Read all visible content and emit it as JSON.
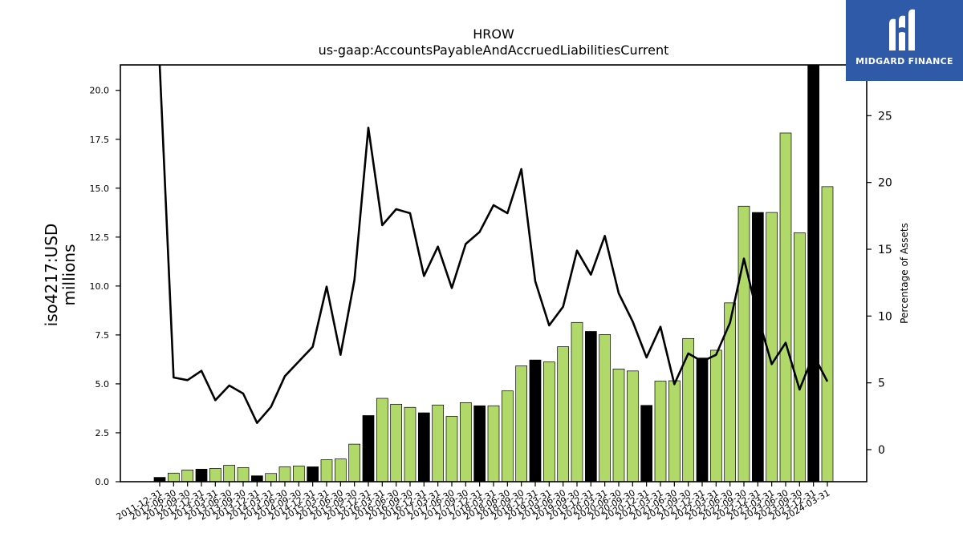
{
  "colors": {
    "bar_fill": "#b0d96a",
    "bar_highlight": "#000000",
    "line": "#000000",
    "logo_bg": "#2f5aa8"
  },
  "logo": {
    "text": "MIDGARD FINANCE"
  },
  "chart_data": {
    "type": "bar",
    "title": "HROW",
    "subtitle": "us-gaap:AccountsPayableAndAccruedLiabilitiesCurrent",
    "ylabel": "iso4217:USD\nmillions",
    "ylabel_right": "Percentage of Assets",
    "ylim": [
      0,
      21.3
    ],
    "ylim_right": [
      -2.4,
      28.8
    ],
    "yticks": [
      "0.0",
      "2.5",
      "5.0",
      "7.5",
      "10.0",
      "12.5",
      "15.0",
      "17.5",
      "20.0"
    ],
    "yticks_right": [
      "0",
      "5",
      "10",
      "15",
      "20",
      "25"
    ],
    "grid": false,
    "x": [
      "2011-12-31",
      "2012-06-30",
      "2012-09-30",
      "2012-12-31",
      "2013-03-31",
      "2013-06-30",
      "2013-09-30",
      "2013-12-31",
      "2014-03-31",
      "2014-06-30",
      "2014-09-30",
      "2014-12-31",
      "2015-03-31",
      "2015-06-30",
      "2015-09-30",
      "2015-12-31",
      "2016-03-31",
      "2016-06-30",
      "2016-09-30",
      "2016-12-31",
      "2017-03-31",
      "2017-06-30",
      "2017-09-30",
      "2017-12-31",
      "2018-03-31",
      "2018-06-30",
      "2018-09-30",
      "2018-12-31",
      "2019-03-31",
      "2019-06-30",
      "2019-09-30",
      "2019-12-31",
      "2020-03-31",
      "2020-06-30",
      "2020-09-30",
      "2020-12-31",
      "2021-03-31",
      "2021-06-30",
      "2021-09-30",
      "2021-12-31",
      "2022-03-31",
      "2022-06-30",
      "2022-09-30",
      "2022-12-31",
      "2023-03-31",
      "2023-06-30",
      "2023-09-30",
      "2023-12-31",
      "2024-03-31"
    ],
    "series": [
      {
        "name": "Value",
        "values": [
          0.22,
          0.44,
          0.6,
          0.64,
          0.68,
          0.84,
          0.72,
          0.3,
          0.42,
          0.76,
          0.8,
          0.76,
          1.12,
          1.16,
          1.92,
          3.38,
          4.26,
          3.96,
          3.8,
          3.52,
          3.92,
          3.34,
          4.04,
          3.88,
          3.88,
          4.64,
          5.92,
          6.22,
          6.12,
          6.9,
          8.14,
          7.68,
          7.52,
          5.76,
          5.66,
          3.9,
          5.14,
          5.16,
          7.32,
          6.32,
          6.72,
          9.14,
          14.08,
          13.76,
          13.76,
          17.82,
          12.72,
          21.4,
          15.08
        ],
        "highlight": [
          true,
          false,
          false,
          true,
          false,
          false,
          false,
          true,
          false,
          false,
          false,
          true,
          false,
          false,
          false,
          true,
          false,
          false,
          false,
          true,
          false,
          false,
          false,
          true,
          false,
          false,
          false,
          true,
          false,
          false,
          false,
          true,
          false,
          false,
          false,
          true,
          false,
          false,
          false,
          true,
          false,
          false,
          false,
          true,
          false,
          false,
          false,
          true,
          false
        ]
      },
      {
        "name": "Percentage of Assets",
        "axis": "right",
        "values": [
          29.5,
          5.4,
          5.2,
          5.9,
          3.7,
          4.8,
          4.2,
          2.0,
          3.2,
          5.5,
          6.6,
          7.7,
          12.2,
          7.1,
          12.7,
          24.1,
          16.8,
          18.0,
          17.7,
          13.0,
          15.2,
          12.1,
          15.4,
          16.3,
          18.3,
          17.7,
          21.0,
          12.6,
          9.3,
          10.7,
          14.9,
          13.1,
          16.0,
          11.7,
          9.6,
          6.9,
          9.2,
          4.9,
          7.2,
          6.6,
          7.1,
          9.5,
          14.3,
          10.0,
          6.4,
          8.0,
          4.5,
          7.1,
          5.1
        ]
      }
    ]
  }
}
